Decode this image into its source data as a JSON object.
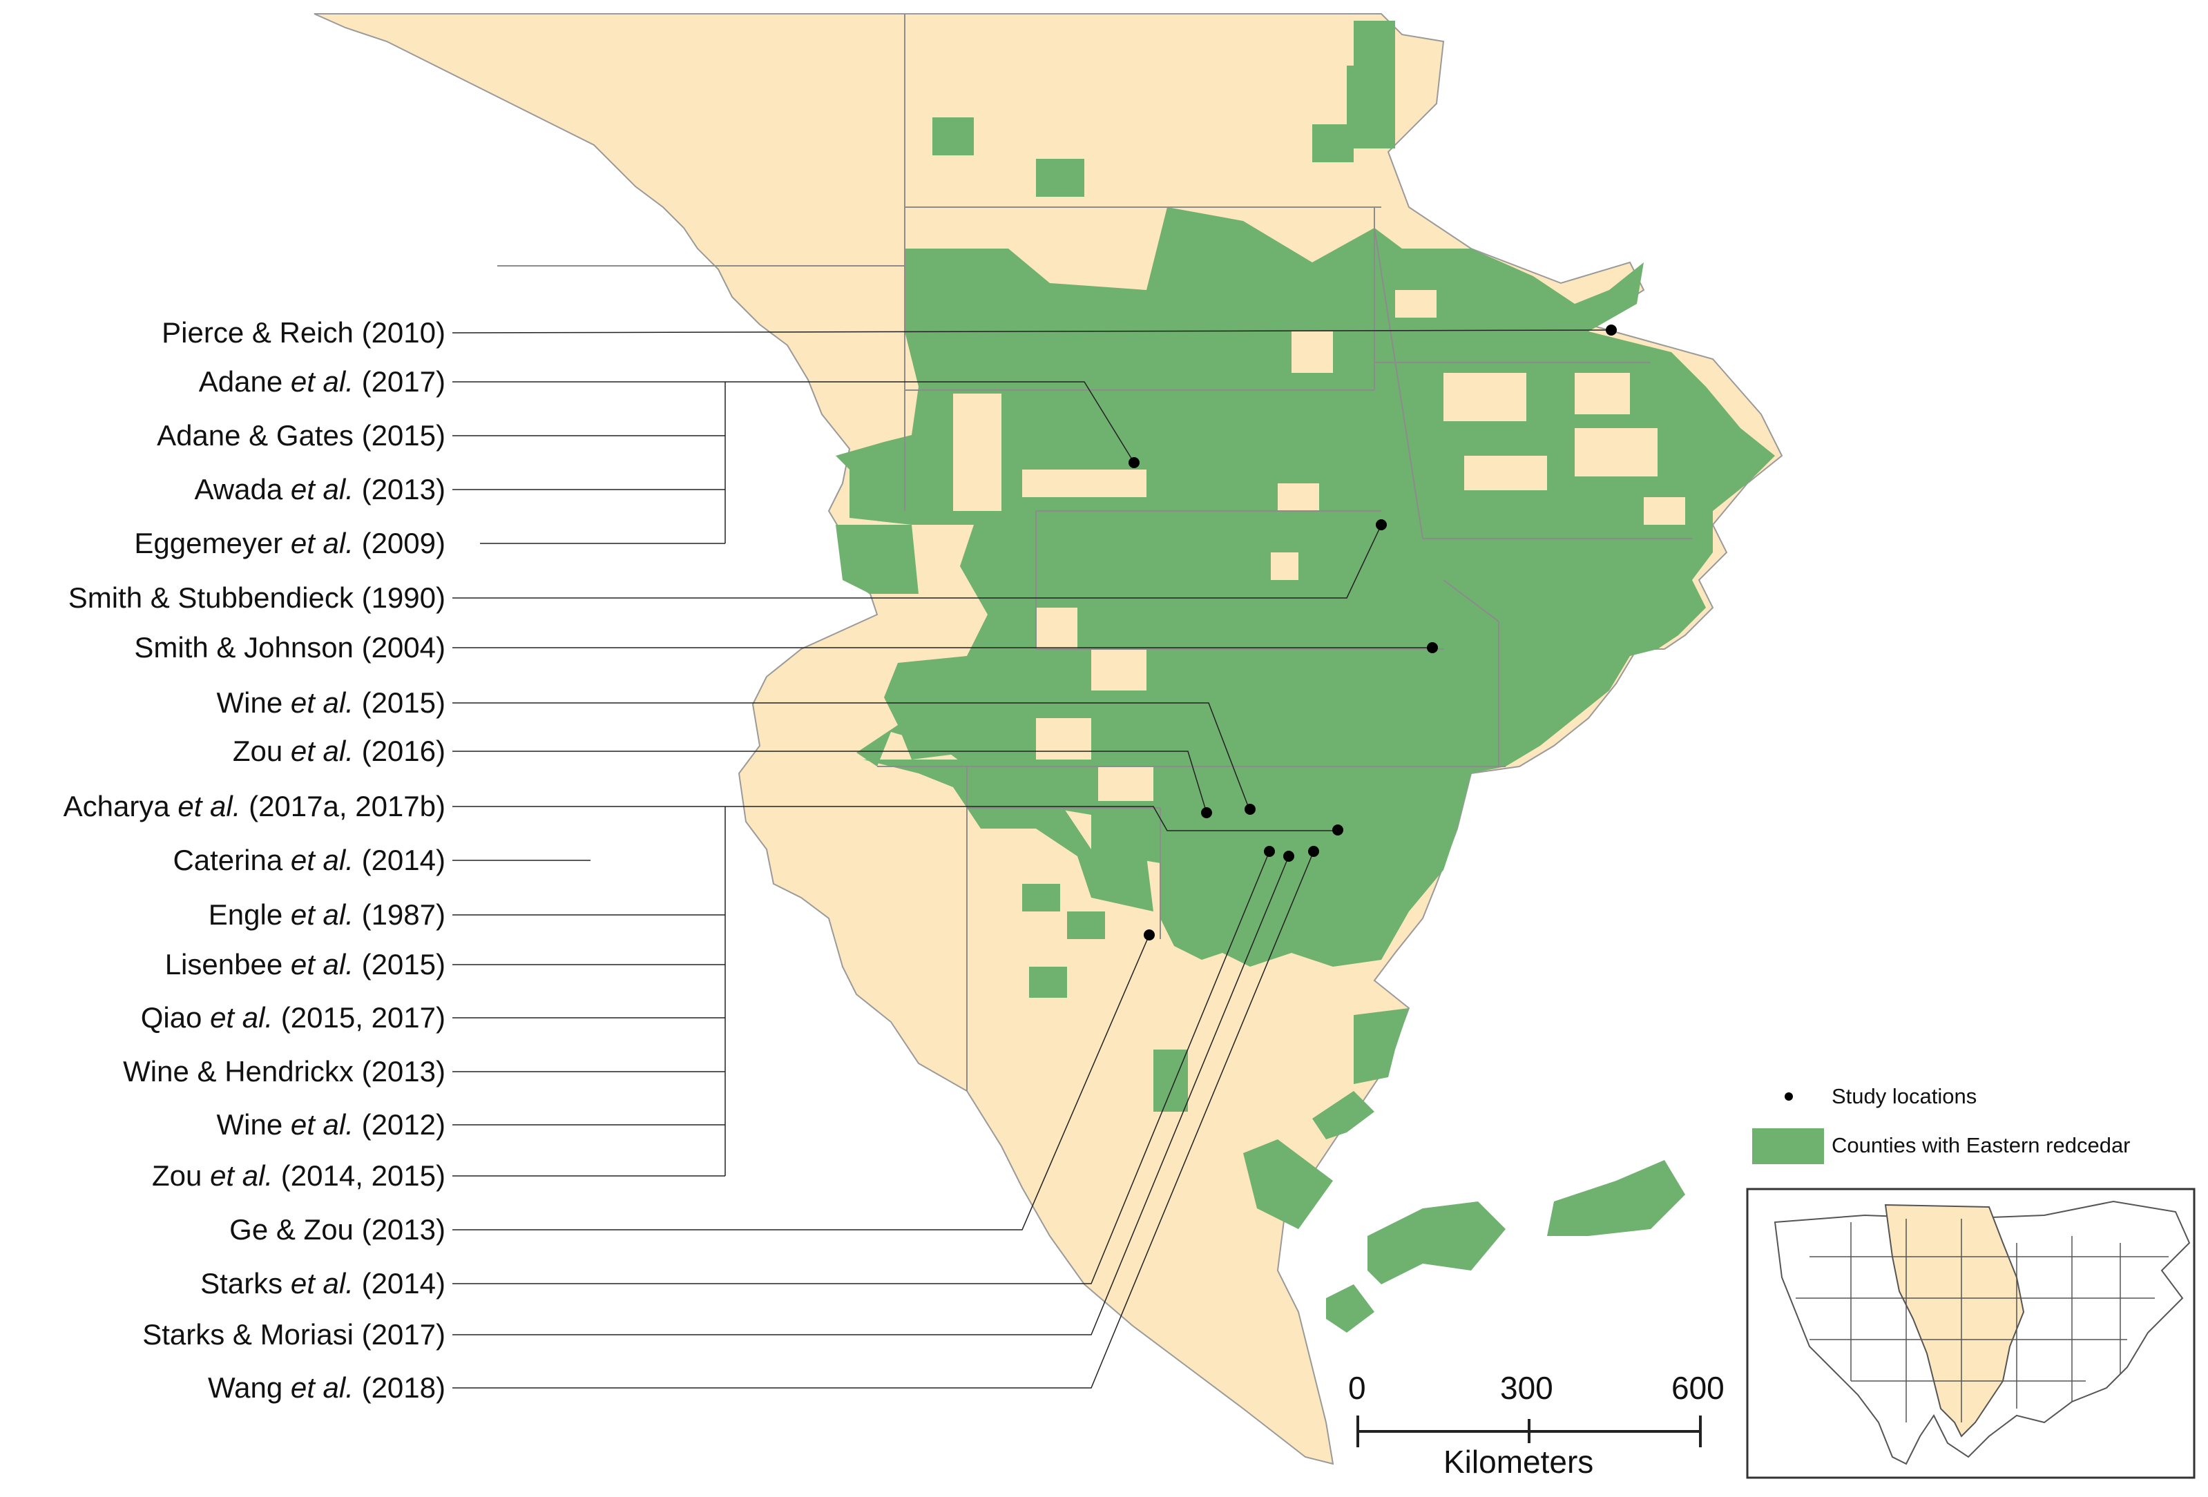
{
  "colors": {
    "region_fill": "#fde7bf",
    "redcedar_fill": "#6fb16f",
    "boundary": "#8c8c8c",
    "leader": "#222222",
    "point": "#000000"
  },
  "studies": [
    {
      "pre": "Pierce & Reich",
      "italic": "",
      "post": " (2010)"
    },
    {
      "pre": "Adane ",
      "italic": "et al.",
      "post": " (2017)"
    },
    {
      "pre": "Adane & Gates",
      "italic": "",
      "post": " (2015)"
    },
    {
      "pre": "Awada ",
      "italic": "et al.",
      "post": " (2013)"
    },
    {
      "pre": "Eggemeyer ",
      "italic": "et al.",
      "post": " (2009)"
    },
    {
      "pre": "Smith & Stubbendieck",
      "italic": "",
      "post": " (1990)"
    },
    {
      "pre": "Smith & Johnson",
      "italic": "",
      "post": " (2004)"
    },
    {
      "pre": "Wine ",
      "italic": "et al.",
      "post": " (2015)"
    },
    {
      "pre": "Zou ",
      "italic": "et al.",
      "post": " (2016)"
    },
    {
      "pre": "Acharya ",
      "italic": "et al.",
      "post": " (2017a, 2017b)"
    },
    {
      "pre": "Caterina ",
      "italic": "et al.",
      "post": " (2014)"
    },
    {
      "pre": "Engle ",
      "italic": "et al.",
      "post": " (1987)"
    },
    {
      "pre": "Lisenbee ",
      "italic": "et al.",
      "post": " (2015)"
    },
    {
      "pre": "Qiao ",
      "italic": "et al.",
      "post": " (2015, 2017)"
    },
    {
      "pre": "Wine & Hendrickx",
      "italic": "",
      "post": " (2013)"
    },
    {
      "pre": "Wine ",
      "italic": "et al.",
      "post": " (2012)"
    },
    {
      "pre": "Zou ",
      "italic": "et al.",
      "post": " (2014, 2015)"
    },
    {
      "pre": "Ge & Zou",
      "italic": "",
      "post": " (2013)"
    },
    {
      "pre": "Starks ",
      "italic": "et al.",
      "post": " (2014)"
    },
    {
      "pre": "Starks & Moriasi",
      "italic": "",
      "post": " (2017)"
    },
    {
      "pre": "Wang ",
      "italic": "et al.",
      "post": "  (2018)"
    }
  ],
  "legend": {
    "points_label": "Study locations",
    "counties_label": "Counties with Eastern redcedar"
  },
  "scale_bar": {
    "ticks": [
      "0",
      "300",
      "600"
    ],
    "unit": "Kilometers"
  },
  "inset": {
    "name": "locator-map"
  }
}
